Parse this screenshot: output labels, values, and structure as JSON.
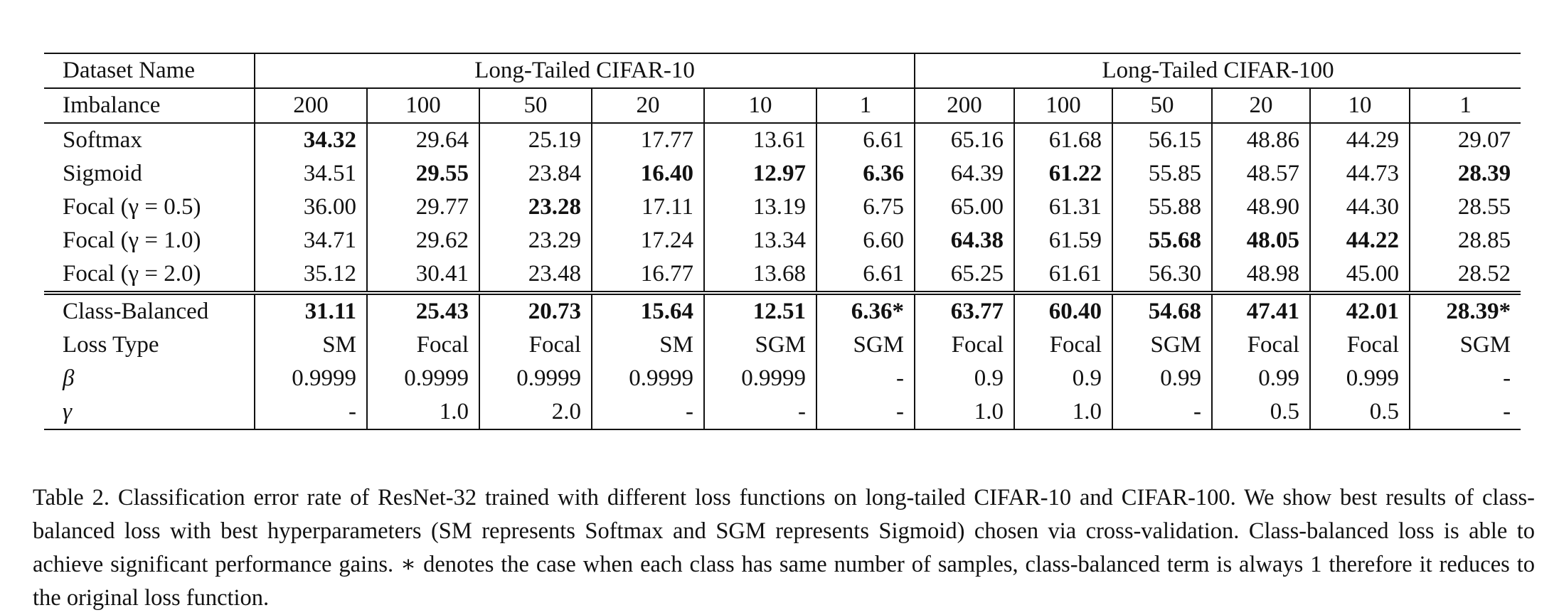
{
  "table": {
    "header": {
      "dataset_label": "Dataset Name",
      "group1": "Long-Tailed CIFAR-10",
      "group2": "Long-Tailed CIFAR-100",
      "imbalance_label": "Imbalance",
      "imbalance": [
        "200",
        "100",
        "50",
        "20",
        "10",
        "1",
        "200",
        "100",
        "50",
        "20",
        "10",
        "1"
      ]
    },
    "rows": [
      {
        "label": "Softmax",
        "values": [
          "34.32",
          "29.64",
          "25.19",
          "17.77",
          "13.61",
          "6.61",
          "65.16",
          "61.68",
          "56.15",
          "48.86",
          "44.29",
          "29.07"
        ]
      },
      {
        "label": "Sigmoid",
        "values": [
          "34.51",
          "29.55",
          "23.84",
          "16.40",
          "12.97",
          "6.36",
          "64.39",
          "61.22",
          "55.85",
          "48.57",
          "44.73",
          "28.39"
        ]
      },
      {
        "label": "Focal (γ = 0.5)",
        "values": [
          "36.00",
          "29.77",
          "23.28",
          "17.11",
          "13.19",
          "6.75",
          "65.00",
          "61.31",
          "55.88",
          "48.90",
          "44.30",
          "28.55"
        ]
      },
      {
        "label": "Focal (γ = 1.0)",
        "values": [
          "34.71",
          "29.62",
          "23.29",
          "17.24",
          "13.34",
          "6.60",
          "64.38",
          "61.59",
          "55.68",
          "48.05",
          "44.22",
          "28.85"
        ]
      },
      {
        "label": "Focal (γ = 2.0)",
        "values": [
          "35.12",
          "30.41",
          "23.48",
          "16.77",
          "13.68",
          "6.61",
          "65.25",
          "61.61",
          "56.30",
          "48.98",
          "45.00",
          "28.52"
        ]
      }
    ],
    "class_balanced": {
      "label": "Class-Balanced",
      "values": [
        "31.11",
        "25.43",
        "20.73",
        "15.64",
        "12.51",
        "6.36*",
        "63.77",
        "60.40",
        "54.68",
        "47.41",
        "42.01",
        "28.39*"
      ]
    },
    "loss_type": {
      "label": "Loss Type",
      "values": [
        "SM",
        "Focal",
        "Focal",
        "SM",
        "SGM",
        "SGM",
        "Focal",
        "Focal",
        "SGM",
        "Focal",
        "Focal",
        "SGM"
      ]
    },
    "beta": {
      "label": "β",
      "values": [
        "0.9999",
        "0.9999",
        "0.9999",
        "0.9999",
        "0.9999",
        "-",
        "0.9",
        "0.9",
        "0.99",
        "0.99",
        "0.999",
        "-"
      ]
    },
    "gamma": {
      "label": "γ",
      "values": [
        "-",
        "1.0",
        "2.0",
        "-",
        "-",
        "-",
        "1.0",
        "1.0",
        "-",
        "0.5",
        "0.5",
        "-"
      ]
    }
  },
  "caption": "Table 2. Classification error rate of ResNet-32 trained with different loss functions on long-tailed CIFAR-10 and CIFAR-100. We show best results of class-balanced loss with best hyperparameters (SM represents Softmax and SGM represents Sigmoid) chosen via cross-validation. Class-balanced loss is able to achieve significant performance gains. ∗ denotes the case when each class has same number of samples, class-balanced term is always 1 therefore it reduces to the original loss function."
}
